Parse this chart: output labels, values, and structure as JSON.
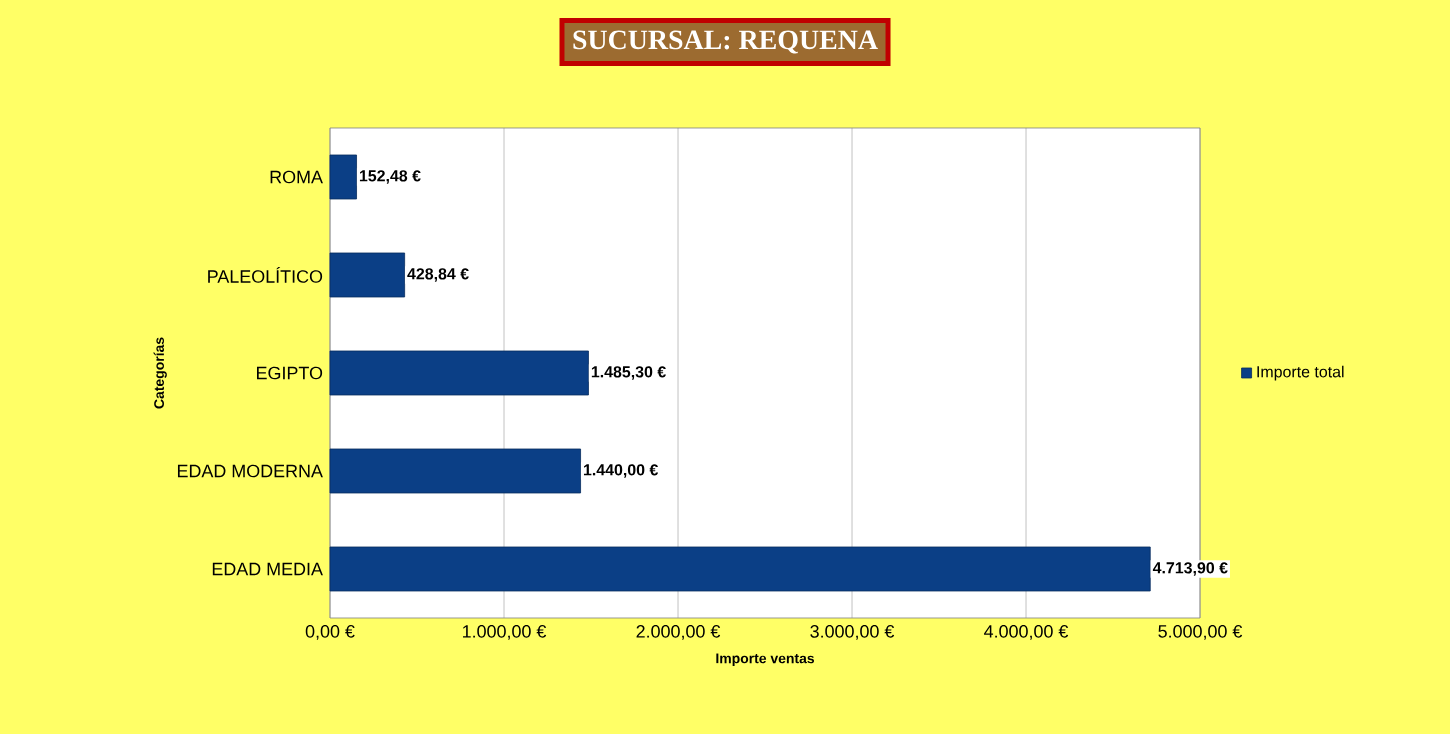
{
  "chart_data": {
    "type": "bar",
    "orientation": "horizontal",
    "title": "SUCURSAL: REQUENA",
    "xlabel": "Importe ventas",
    "ylabel": "Categorías",
    "categories": [
      "ROMA",
      "PALEOLÍTICO",
      "EGIPTO",
      "EDAD MODERNA",
      "EDAD MEDIA"
    ],
    "series": [
      {
        "name": "Importe total",
        "color": "#0b3f86",
        "values": [
          152.48,
          428.84,
          1485.3,
          1440.0,
          4713.9
        ],
        "value_labels": [
          "152,48 €",
          "428,84 €",
          "1.485,30 €",
          "1.440,00 €",
          "4.713,90 €"
        ]
      }
    ],
    "xlim": [
      0,
      5000
    ],
    "xticks": [
      {
        "value": 0,
        "label": "0,00 €"
      },
      {
        "value": 1000,
        "label": "1.000,00 €"
      },
      {
        "value": 2000,
        "label": "2.000,00 €"
      },
      {
        "value": 3000,
        "label": "3.000,00 €"
      },
      {
        "value": 4000,
        "label": "4.000,00 €"
      },
      {
        "value": 5000,
        "label": "5.000,00 €"
      }
    ],
    "grid": "x",
    "legend": "right"
  }
}
